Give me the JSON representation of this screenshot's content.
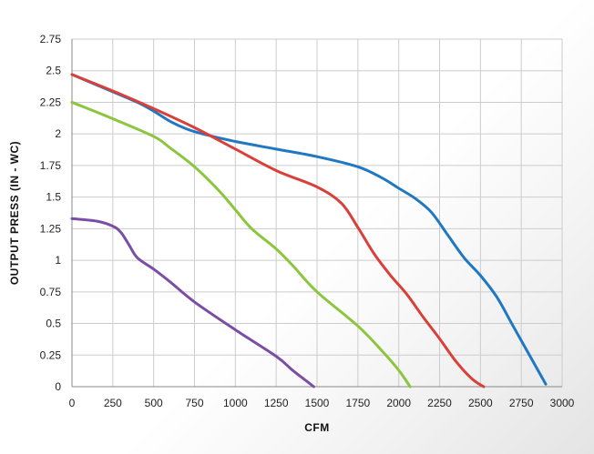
{
  "chart_data": {
    "type": "line",
    "xlabel": "CFM",
    "ylabel": "OUTPUT  PRESS (IN - WC)",
    "xlim": [
      0,
      3000
    ],
    "ylim": [
      0,
      2.75
    ],
    "xticks": [
      "0",
      "250",
      "500",
      "750",
      "1000",
      "1250",
      "1500",
      "1750",
      "2000",
      "2250",
      "2500",
      "2750",
      "3000"
    ],
    "yticks": [
      "0",
      "0.25",
      "0.5",
      "0.75",
      "1",
      "1.25",
      "1.5",
      "1.75",
      "2",
      "2.25",
      "2.5",
      "2.75"
    ],
    "grid": true,
    "series": [
      {
        "color": "#1f78c1",
        "points": [
          [
            0,
            2.47
          ],
          [
            200,
            2.36
          ],
          [
            400,
            2.25
          ],
          [
            500,
            2.18
          ],
          [
            600,
            2.1
          ],
          [
            700,
            2.04
          ],
          [
            800,
            2.0
          ],
          [
            1000,
            1.94
          ],
          [
            1250,
            1.88
          ],
          [
            1500,
            1.82
          ],
          [
            1750,
            1.74
          ],
          [
            1900,
            1.65
          ],
          [
            2000,
            1.57
          ],
          [
            2100,
            1.49
          ],
          [
            2200,
            1.38
          ],
          [
            2300,
            1.2
          ],
          [
            2400,
            1.02
          ],
          [
            2500,
            0.88
          ],
          [
            2600,
            0.71
          ],
          [
            2700,
            0.48
          ],
          [
            2800,
            0.25
          ],
          [
            2900,
            0.02
          ]
        ]
      },
      {
        "color": "#d9403a",
        "points": [
          [
            0,
            2.47
          ],
          [
            250,
            2.34
          ],
          [
            500,
            2.2
          ],
          [
            750,
            2.05
          ],
          [
            1000,
            1.88
          ],
          [
            1250,
            1.71
          ],
          [
            1500,
            1.58
          ],
          [
            1650,
            1.45
          ],
          [
            1750,
            1.26
          ],
          [
            1850,
            1.05
          ],
          [
            1950,
            0.88
          ],
          [
            2050,
            0.73
          ],
          [
            2150,
            0.55
          ],
          [
            2250,
            0.38
          ],
          [
            2350,
            0.2
          ],
          [
            2450,
            0.06
          ],
          [
            2520,
            0.0
          ]
        ]
      },
      {
        "color": "#8cc63f",
        "points": [
          [
            0,
            2.25
          ],
          [
            250,
            2.12
          ],
          [
            500,
            1.98
          ],
          [
            600,
            1.89
          ],
          [
            750,
            1.74
          ],
          [
            900,
            1.55
          ],
          [
            1000,
            1.4
          ],
          [
            1100,
            1.25
          ],
          [
            1250,
            1.09
          ],
          [
            1350,
            0.96
          ],
          [
            1500,
            0.75
          ],
          [
            1750,
            0.48
          ],
          [
            1900,
            0.28
          ],
          [
            2000,
            0.13
          ],
          [
            2070,
            0.0
          ]
        ]
      },
      {
        "color": "#7b4ea5",
        "points": [
          [
            0,
            1.33
          ],
          [
            150,
            1.31
          ],
          [
            250,
            1.27
          ],
          [
            300,
            1.22
          ],
          [
            350,
            1.12
          ],
          [
            400,
            1.02
          ],
          [
            500,
            0.93
          ],
          [
            600,
            0.83
          ],
          [
            750,
            0.67
          ],
          [
            1000,
            0.45
          ],
          [
            1250,
            0.24
          ],
          [
            1350,
            0.13
          ],
          [
            1420,
            0.06
          ],
          [
            1480,
            0.0
          ]
        ]
      }
    ]
  }
}
